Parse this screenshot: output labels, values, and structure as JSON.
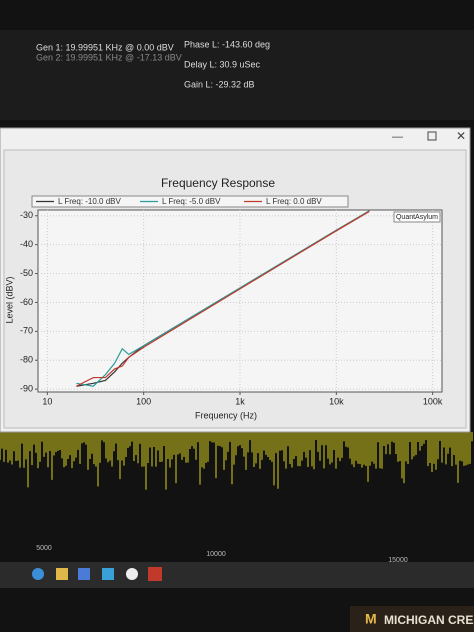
{
  "screen": {
    "gen1": "Gen 1: 19.99951 KHz @ 0.00  dBV",
    "gen2": "Gen 2: 19.99951 KHz @ -17.13  dBV",
    "phase": "Phase L: -143.60 deg",
    "delay": "Delay L: 30.9 uSec",
    "gain": "Gain L: -29.32 dB",
    "spectrum_ticks": [
      "5000",
      "10000",
      "15000"
    ],
    "sticker": "MICHIGAN CREA"
  },
  "chart_data": {
    "type": "line",
    "title": "Frequency Response",
    "x_label": "Frequency (Hz)",
    "y_label": "Level (dBV)",
    "watermark": "QuantAsylum",
    "x_scale": "log",
    "grid": true,
    "x": [
      20,
      30,
      40,
      50,
      60,
      70,
      100,
      1000,
      10000,
      22000
    ],
    "series": [
      {
        "name": "L Freq: -10.0 dBV",
        "color": "#333333",
        "values": [
          -89,
          -88,
          -87,
          -84,
          -81,
          -79,
          -75,
          -55,
          -35,
          -28.3
        ]
      },
      {
        "name": "L Freq: -5.0 dBV",
        "color": "#2a9d9a",
        "values": [
          -88,
          -89,
          -85,
          -81,
          -76,
          -78,
          -75,
          -55,
          -35,
          -28.3
        ]
      },
      {
        "name": "L Freq: 0.0 dBV",
        "color": "#c0392b",
        "values": [
          -89,
          -86,
          -86,
          -83,
          -82,
          -79,
          -75.5,
          -55.3,
          -35.2,
          -28.5
        ]
      }
    ],
    "xlim": [
      8,
      125000
    ],
    "xticks": [
      10,
      100,
      {
        "value": 1000,
        "label": "1k"
      },
      {
        "value": 10000,
        "label": "10k"
      },
      {
        "value": 100000,
        "label": "100k"
      }
    ],
    "ylim": [
      -91,
      -28
    ],
    "yticks": [
      -30,
      -40,
      -50,
      -60,
      -70,
      -80,
      -90
    ]
  }
}
